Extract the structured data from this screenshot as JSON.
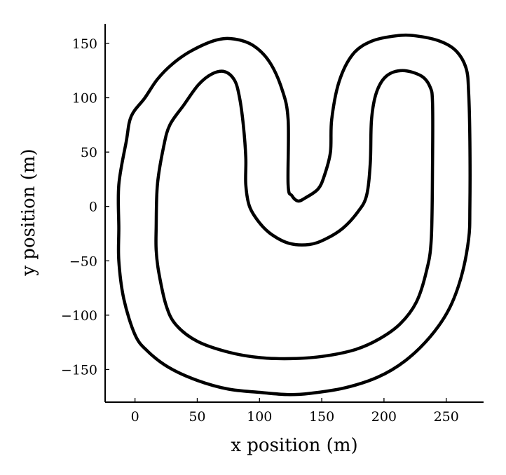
{
  "chart_data": {
    "type": "line",
    "title": "",
    "xlabel": "x position (m)",
    "ylabel": "y position (m)",
    "xlim": [
      -24,
      280
    ],
    "ylim": [
      -180,
      168
    ],
    "x_ticks": [
      {
        "value": 0,
        "label": "0"
      },
      {
        "value": 50,
        "label": "50"
      },
      {
        "value": 100,
        "label": "100"
      },
      {
        "value": 150,
        "label": "150"
      },
      {
        "value": 200,
        "label": "200"
      },
      {
        "value": 250,
        "label": "250"
      }
    ],
    "y_ticks": [
      {
        "value": 150,
        "label": "150"
      },
      {
        "value": 100,
        "label": "100"
      },
      {
        "value": 50,
        "label": "50"
      },
      {
        "value": 0,
        "label": "0"
      },
      {
        "value": -50,
        "label": "−50"
      },
      {
        "value": -100,
        "label": "−100"
      },
      {
        "value": -150,
        "label": "−150"
      }
    ],
    "grid": false,
    "legend": "none",
    "line_color": "#000000",
    "series": [
      {
        "closed": true,
        "points": [
          [
            -13,
            -20
          ],
          [
            -13,
            20
          ],
          [
            -7,
            60
          ],
          [
            -3,
            83
          ],
          [
            8,
            100
          ],
          [
            18,
            117
          ],
          [
            30,
            131
          ],
          [
            45,
            143
          ],
          [
            65,
            153
          ],
          [
            80,
            154
          ],
          [
            95,
            148
          ],
          [
            108,
            133
          ],
          [
            118,
            108
          ],
          [
            123,
            80
          ],
          [
            123,
            20
          ],
          [
            126,
            10
          ],
          [
            131,
            5
          ],
          [
            137,
            8
          ],
          [
            147,
            16
          ],
          [
            152,
            28
          ],
          [
            157,
            50
          ],
          [
            158,
            80
          ],
          [
            164,
            115
          ],
          [
            175,
            140
          ],
          [
            190,
            152
          ],
          [
            210,
            157
          ],
          [
            225,
            157
          ],
          [
            245,
            152
          ],
          [
            258,
            143
          ],
          [
            266,
            127
          ],
          [
            268,
            105
          ],
          [
            269,
            60
          ],
          [
            269,
            0
          ],
          [
            268,
            -30
          ],
          [
            262,
            -65
          ],
          [
            252,
            -95
          ],
          [
            237,
            -120
          ],
          [
            217,
            -142
          ],
          [
            195,
            -157
          ],
          [
            168,
            -167
          ],
          [
            140,
            -172
          ],
          [
            122,
            -173
          ],
          [
            100,
            -171
          ],
          [
            75,
            -168
          ],
          [
            50,
            -160
          ],
          [
            27,
            -148
          ],
          [
            10,
            -133
          ],
          [
            0,
            -118
          ],
          [
            -9,
            -85
          ],
          [
            -13,
            -50
          ]
        ]
      },
      {
        "closed": true,
        "points": [
          [
            17,
            -20
          ],
          [
            18,
            20
          ],
          [
            23,
            55
          ],
          [
            28,
            75
          ],
          [
            39,
            93
          ],
          [
            51,
            112
          ],
          [
            62,
            122
          ],
          [
            72,
            124
          ],
          [
            80,
            116
          ],
          [
            84,
            100
          ],
          [
            87,
            75
          ],
          [
            89,
            45
          ],
          [
            89,
            20
          ],
          [
            92,
            0
          ],
          [
            100,
            -15
          ],
          [
            110,
            -26
          ],
          [
            124,
            -34
          ],
          [
            140,
            -35
          ],
          [
            153,
            -30
          ],
          [
            167,
            -20
          ],
          [
            179,
            -5
          ],
          [
            186,
            10
          ],
          [
            189,
            40
          ],
          [
            190,
            80
          ],
          [
            194,
            105
          ],
          [
            202,
            120
          ],
          [
            215,
            125
          ],
          [
            230,
            120
          ],
          [
            237,
            110
          ],
          [
            239,
            95
          ],
          [
            239,
            40
          ],
          [
            238,
            -30
          ],
          [
            234,
            -60
          ],
          [
            226,
            -88
          ],
          [
            213,
            -108
          ],
          [
            196,
            -122
          ],
          [
            176,
            -132
          ],
          [
            150,
            -138
          ],
          [
            125,
            -140
          ],
          [
            100,
            -139
          ],
          [
            75,
            -134
          ],
          [
            50,
            -124
          ],
          [
            33,
            -109
          ],
          [
            25,
            -91
          ],
          [
            19,
            -60
          ],
          [
            17,
            -40
          ]
        ]
      }
    ]
  }
}
